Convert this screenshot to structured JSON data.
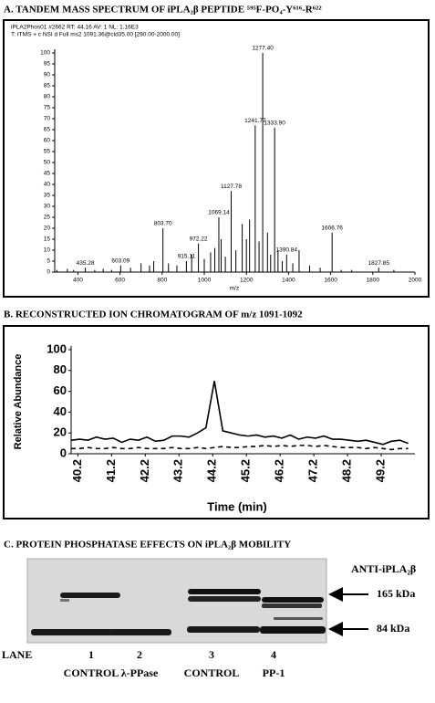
{
  "chart_data": [
    {
      "type": "stem",
      "title": "A. TANDEM MASS SPECTRUM OF iPLA₂β PEPTIDE ⁵⁹⁵F-PO₄-Y⁶¹⁶-R⁶²²",
      "header_lines": [
        "iPLA2Phos01 #2662  RT: 44.16  AV: 1  NL: 1.16E3",
        "T: ITMS + c NSI d Full ms2 1091.36@cid35.00 [290.00-2000.00]"
      ],
      "xlabel": "m/z",
      "color": "#000000",
      "x": [
        300,
        350,
        380,
        435.28,
        480,
        520,
        560,
        603.09,
        650,
        700,
        740,
        760,
        803.7,
        830,
        870,
        915.11,
        940,
        972.22,
        1000,
        1030,
        1050,
        1069.14,
        1080,
        1100,
        1127.78,
        1150,
        1180,
        1200,
        1215,
        1241.77,
        1260,
        1277.4,
        1300,
        1315,
        1333.9,
        1350,
        1370,
        1390.84,
        1420,
        1450,
        1500,
        1550,
        1606.76,
        1650,
        1700,
        1827.85,
        1900
      ],
      "x_labels": [
        null,
        null,
        null,
        "435.28",
        null,
        null,
        null,
        "603.09",
        null,
        null,
        null,
        null,
        "803.70",
        null,
        null,
        "915.11",
        null,
        "972.22",
        null,
        null,
        null,
        "1069.14",
        null,
        null,
        "1127.78",
        null,
        null,
        null,
        null,
        "1241.77",
        null,
        "1277.40",
        null,
        null,
        "1333.90",
        null,
        null,
        "1390.84",
        null,
        null,
        null,
        null,
        "1606.76",
        null,
        null,
        "1827.85",
        null
      ],
      "values": [
        1,
        1.5,
        1,
        2,
        1,
        1.5,
        1,
        3,
        2,
        4,
        3,
        5,
        20,
        4,
        3,
        5,
        8,
        13,
        6,
        9,
        11,
        25,
        15,
        7,
        37,
        10,
        22,
        15,
        24,
        67,
        14,
        100,
        18,
        8,
        66,
        10,
        5,
        8,
        4,
        10,
        3,
        2,
        18,
        1,
        1,
        2,
        1
      ],
      "xlim": [
        290,
        2000
      ],
      "xticks": [
        400,
        600,
        800,
        1000,
        1200,
        1400,
        1600,
        1800,
        2000
      ],
      "ylim": [
        0,
        100
      ],
      "yticks": [
        0,
        5,
        10,
        15,
        20,
        25,
        30,
        35,
        40,
        45,
        50,
        55,
        60,
        65,
        70,
        75,
        80,
        85,
        90,
        95,
        100
      ]
    },
    {
      "type": "line",
      "title": "B. RECONSTRUCTED ION CHROMATOGRAM OF m/z 1091-1092",
      "xlabel": "Time (min)",
      "ylabel": "Relative Abundance",
      "x": [
        40.0,
        40.25,
        40.5,
        40.75,
        41.0,
        41.25,
        41.5,
        41.75,
        42.0,
        42.25,
        42.5,
        42.75,
        43.0,
        43.25,
        43.5,
        43.75,
        44.0,
        44.25,
        44.5,
        44.75,
        45.0,
        45.25,
        45.5,
        45.75,
        46.0,
        46.25,
        46.5,
        46.75,
        47.0,
        47.25,
        47.5,
        47.75,
        48.0,
        48.25,
        48.5,
        48.75,
        49.0,
        49.25,
        49.5,
        49.75,
        50.0
      ],
      "series": [
        {
          "color": "#000000",
          "dash": false,
          "values": [
            13,
            14,
            13,
            16,
            14,
            15,
            11,
            14,
            13,
            16,
            12,
            13,
            17,
            17,
            16,
            20,
            25,
            70,
            22,
            20,
            18,
            17,
            18,
            16,
            17,
            15,
            18,
            14,
            16,
            15,
            17,
            14,
            14,
            13,
            12,
            13,
            11,
            9,
            12,
            13,
            10
          ]
        },
        {
          "color": "#000000",
          "dash": true,
          "values": [
            5,
            5,
            6,
            5,
            5,
            6,
            5,
            5,
            6,
            5,
            5,
            5,
            6,
            5,
            5,
            6,
            5,
            6,
            7,
            6,
            6,
            7,
            7,
            8,
            7,
            8,
            7,
            8,
            8,
            7,
            8,
            7,
            6,
            6,
            6,
            5,
            6,
            5,
            4,
            5,
            5
          ]
        }
      ],
      "xlim": [
        40.0,
        50.2
      ],
      "xticks": [
        40.2,
        41.2,
        42.2,
        43.2,
        44.2,
        45.2,
        46.2,
        47.2,
        48.2,
        49.2
      ],
      "ylim": [
        0,
        100
      ],
      "yticks": [
        0,
        20,
        40,
        60,
        80,
        100
      ]
    }
  ],
  "blot": {
    "title": "C. PROTEIN PHOSPHATASE EFFECTS ON iPLA₂β MOBILITY",
    "antibody": "ANTI-iPLA₂β",
    "markers": [
      "165 kDa",
      "84 kDa"
    ],
    "lane_heading": "LANE",
    "lanes": [
      {
        "number": "1",
        "name": "CONTROL"
      },
      {
        "number": "2",
        "name": "λ-PPase"
      },
      {
        "number": "3",
        "name": "CONTROL"
      },
      {
        "number": "4",
        "name": "PP-1"
      }
    ]
  }
}
